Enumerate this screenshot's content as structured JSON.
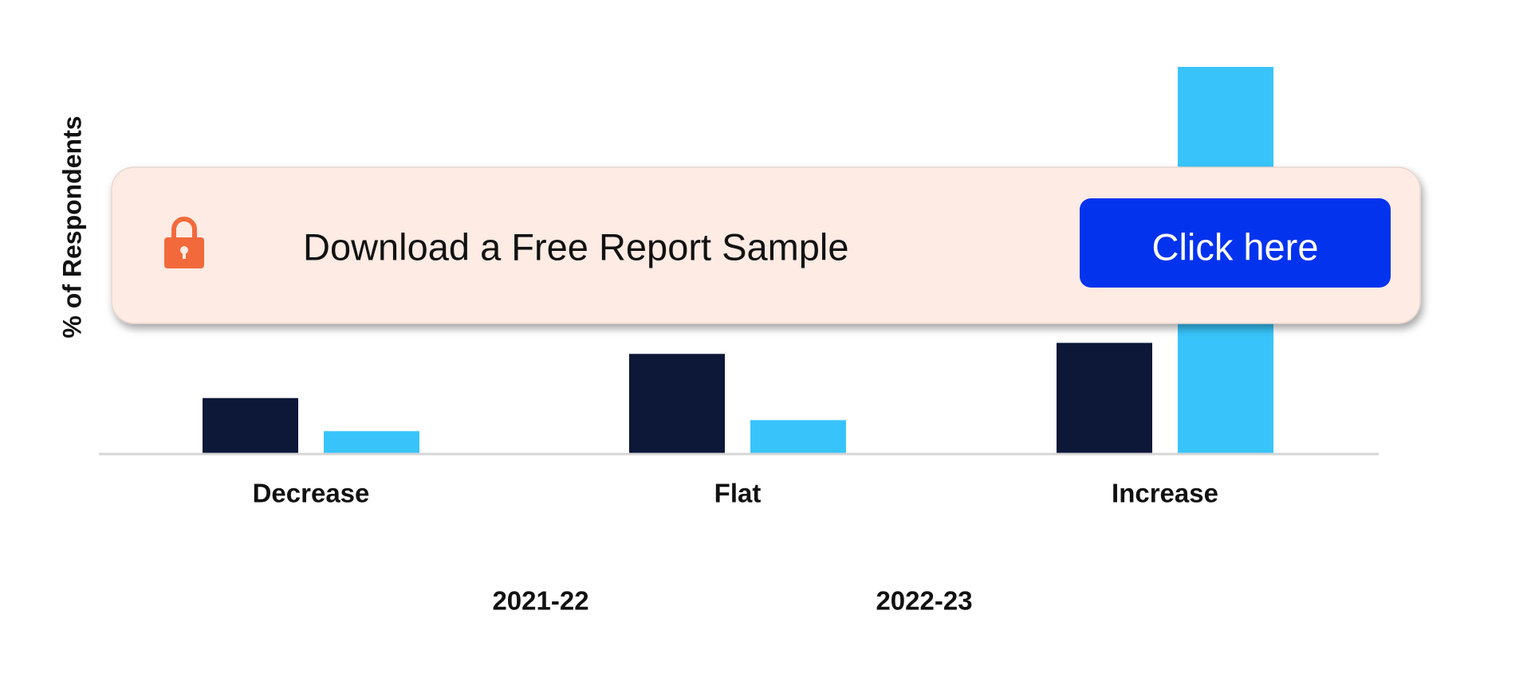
{
  "chart_data": {
    "type": "bar",
    "y_label": "% of Respondents",
    "categories": [
      "Decrease",
      "Flat",
      "Increase"
    ],
    "series": [
      {
        "name": "2021-22",
        "color": "#0d1738",
        "values": [
          10,
          18,
          20
        ]
      },
      {
        "name": "2022-23",
        "color": "#38c4fa",
        "values": [
          4,
          6,
          70
        ]
      }
    ],
    "ylim": [
      0,
      70
    ]
  },
  "banner": {
    "text": "Download a Free Report Sample",
    "button": "Click here"
  }
}
